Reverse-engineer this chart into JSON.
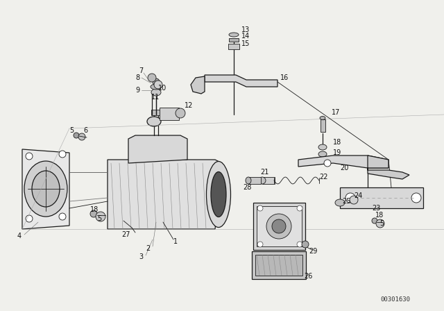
{
  "background_color": "#f0f0ec",
  "line_color": "#1a1a1a",
  "text_color": "#111111",
  "diagram_code": "00301630",
  "font_size": 7.0
}
